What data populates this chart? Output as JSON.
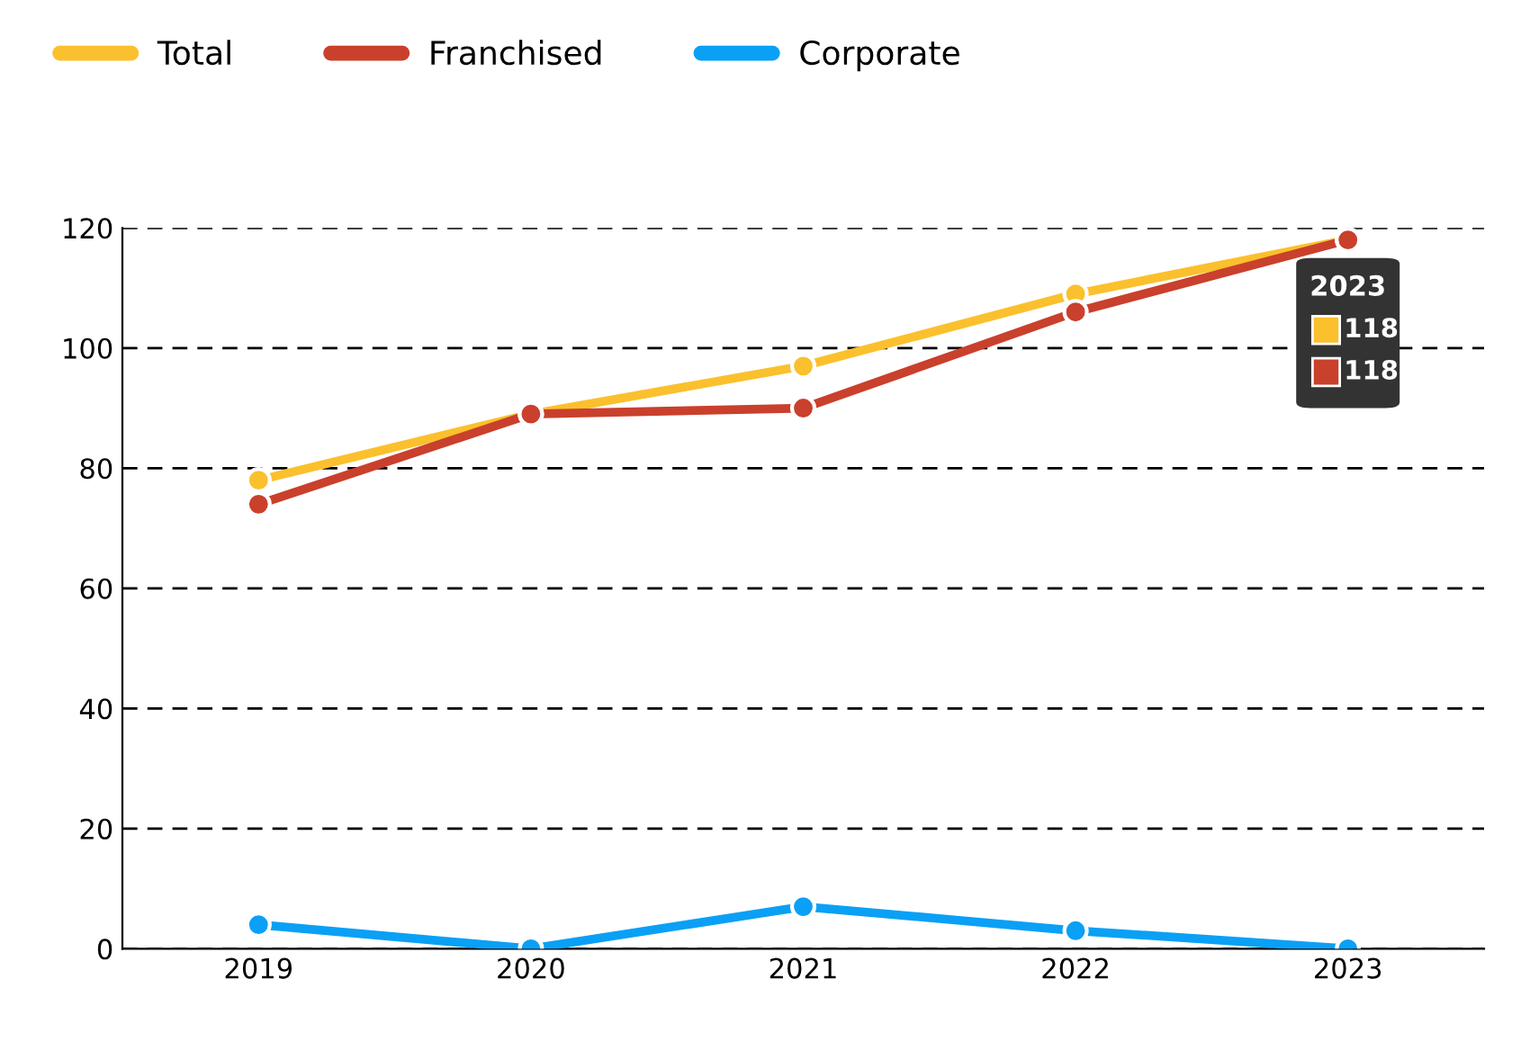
{
  "chart_data": {
    "type": "line",
    "categories": [
      "2019",
      "2020",
      "2021",
      "2022",
      "2023"
    ],
    "series": [
      {
        "name": "Total",
        "color": "#fbc02d",
        "values": [
          78,
          89,
          97,
          109,
          118
        ]
      },
      {
        "name": "Franchised",
        "color": "#c9402c",
        "values": [
          74,
          89,
          90,
          106,
          118
        ]
      },
      {
        "name": "Corporate",
        "color": "#0aa0f5",
        "values": [
          4,
          0,
          7,
          3,
          0
        ]
      }
    ],
    "ylim": [
      0,
      120
    ],
    "yticks": [
      0,
      20,
      40,
      60,
      80,
      100,
      120
    ],
    "grid": "y",
    "legend": "top left",
    "marker": "circle",
    "line_style": "solid",
    "annotations": [
      "2023",
      "118",
      "118"
    ]
  }
}
